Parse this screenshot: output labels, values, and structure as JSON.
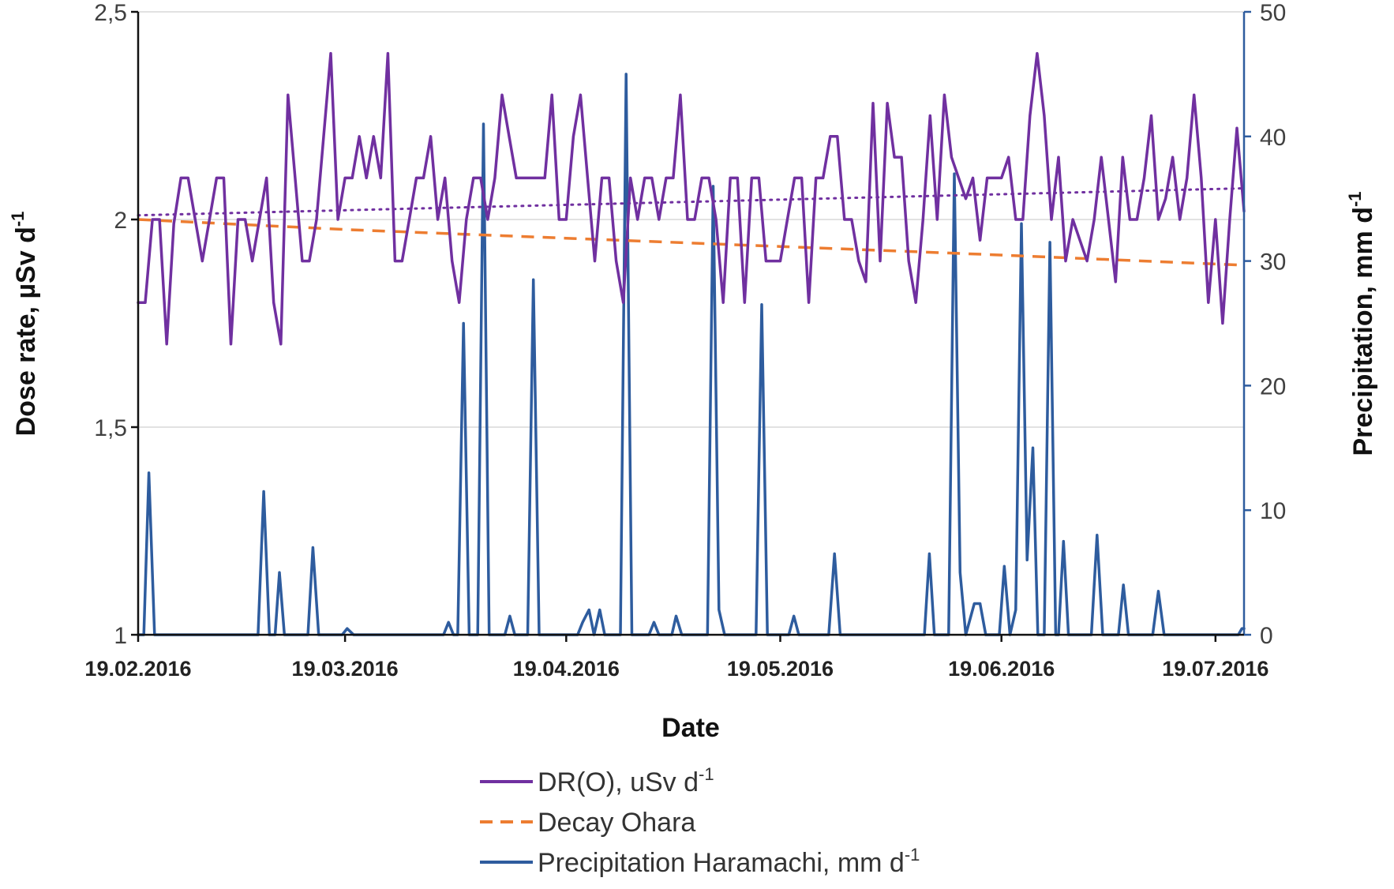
{
  "chart_data": {
    "type": "line",
    "title": "",
    "xlabel": "Date",
    "ylabel_left": "Dose rate, µSv d",
    "ylabel_left_sup": "-1",
    "ylabel_right": "Precipitation, mm d",
    "ylabel_right_sup": "-1",
    "ylim_left": [
      1,
      2.5
    ],
    "ylim_right": [
      0,
      50
    ],
    "left_ticks": [
      {
        "value": 1,
        "label": "1"
      },
      {
        "value": 1.5,
        "label": "1,5"
      },
      {
        "value": 2,
        "label": "2"
      },
      {
        "value": 2.5,
        "label": "2,5"
      }
    ],
    "right_ticks": [
      {
        "value": 0,
        "label": "0"
      },
      {
        "value": 10,
        "label": "10"
      },
      {
        "value": 20,
        "label": "20"
      },
      {
        "value": 30,
        "label": "30"
      },
      {
        "value": 40,
        "label": "40"
      },
      {
        "value": 50,
        "label": "50"
      }
    ],
    "x_range_days": [
      0,
      155
    ],
    "x_ticks": [
      {
        "day": 0,
        "label": "19.02.2016"
      },
      {
        "day": 29,
        "label": "19.03.2016"
      },
      {
        "day": 60,
        "label": "19.04.2016"
      },
      {
        "day": 90,
        "label": "19.05.2016"
      },
      {
        "day": 121,
        "label": "19.06.2016"
      },
      {
        "day": 151,
        "label": "19.07.2016"
      }
    ],
    "grid": "horizontal",
    "legend_position": "bottom",
    "series": [
      {
        "name": "DR(O), uSv d",
        "name_sup": "-1",
        "axis": "left",
        "color": "#7030a0",
        "style": "solid",
        "values": [
          [
            0,
            1.8
          ],
          [
            1,
            1.8
          ],
          [
            2,
            2.0
          ],
          [
            3,
            2.0
          ],
          [
            4,
            1.7
          ],
          [
            5,
            1.99
          ],
          [
            6,
            2.1
          ],
          [
            7,
            2.1
          ],
          [
            8,
            2.0
          ],
          [
            9,
            1.9
          ],
          [
            10,
            2.0
          ],
          [
            11,
            2.1
          ],
          [
            12,
            2.1
          ],
          [
            13,
            1.7
          ],
          [
            14,
            2.0
          ],
          [
            15,
            2.0
          ],
          [
            16,
            1.9
          ],
          [
            17,
            2.0
          ],
          [
            18,
            2.1
          ],
          [
            19,
            1.8
          ],
          [
            20,
            1.7
          ],
          [
            21,
            2.3
          ],
          [
            22,
            2.1
          ],
          [
            23,
            1.9
          ],
          [
            24,
            1.9
          ],
          [
            25,
            2.0
          ],
          [
            26,
            2.2
          ],
          [
            27,
            2.4
          ],
          [
            28,
            2.0
          ],
          [
            29,
            2.1
          ],
          [
            30,
            2.1
          ],
          [
            31,
            2.2
          ],
          [
            32,
            2.1
          ],
          [
            33,
            2.2
          ],
          [
            34,
            2.1
          ],
          [
            35,
            2.4
          ],
          [
            36,
            1.9
          ],
          [
            37,
            1.9
          ],
          [
            38,
            2.0
          ],
          [
            39,
            2.1
          ],
          [
            40,
            2.1
          ],
          [
            41,
            2.2
          ],
          [
            42,
            2.0
          ],
          [
            43,
            2.1
          ],
          [
            44,
            1.9
          ],
          [
            45,
            1.8
          ],
          [
            46,
            2.0
          ],
          [
            47,
            2.1
          ],
          [
            48,
            2.1
          ],
          [
            49,
            2.0
          ],
          [
            50,
            2.1
          ],
          [
            51,
            2.3
          ],
          [
            52,
            2.2
          ],
          [
            53,
            2.1
          ],
          [
            54,
            2.1
          ],
          [
            55,
            2.1
          ],
          [
            56,
            2.1
          ],
          [
            57,
            2.1
          ],
          [
            58,
            2.3
          ],
          [
            59,
            2.0
          ],
          [
            60,
            2.0
          ],
          [
            61,
            2.2
          ],
          [
            62,
            2.3
          ],
          [
            63,
            2.1
          ],
          [
            64,
            1.9
          ],
          [
            65,
            2.1
          ],
          [
            66,
            2.1
          ],
          [
            67,
            1.9
          ],
          [
            68,
            1.8
          ],
          [
            69,
            2.1
          ],
          [
            70,
            2.0
          ],
          [
            71,
            2.1
          ],
          [
            72,
            2.1
          ],
          [
            73,
            2.0
          ],
          [
            74,
            2.1
          ],
          [
            75,
            2.1
          ],
          [
            76,
            2.3
          ],
          [
            77,
            2.0
          ],
          [
            78,
            2.0
          ],
          [
            79,
            2.1
          ],
          [
            80,
            2.1
          ],
          [
            81,
            2.0
          ],
          [
            82,
            1.8
          ],
          [
            83,
            2.1
          ],
          [
            84,
            2.1
          ],
          [
            85,
            1.8
          ],
          [
            86,
            2.1
          ],
          [
            87,
            2.1
          ],
          [
            88,
            1.9
          ],
          [
            89,
            1.9
          ],
          [
            90,
            1.9
          ],
          [
            91,
            2.0
          ],
          [
            92,
            2.1
          ],
          [
            93,
            2.1
          ],
          [
            94,
            1.8
          ],
          [
            95,
            2.1
          ],
          [
            96,
            2.1
          ],
          [
            97,
            2.2
          ],
          [
            98,
            2.2
          ],
          [
            99,
            2.0
          ],
          [
            100,
            2.0
          ],
          [
            101,
            1.9
          ],
          [
            102,
            1.85
          ],
          [
            103,
            2.28
          ],
          [
            104,
            1.9
          ],
          [
            105,
            2.28
          ],
          [
            106,
            2.15
          ],
          [
            107,
            2.15
          ],
          [
            108,
            1.9
          ],
          [
            109,
            1.8
          ],
          [
            110,
            2.0
          ],
          [
            111,
            2.25
          ],
          [
            112,
            2.0
          ],
          [
            113,
            2.3
          ],
          [
            114,
            2.15
          ],
          [
            115,
            2.1
          ],
          [
            116,
            2.05
          ],
          [
            117,
            2.1
          ],
          [
            118,
            1.95
          ],
          [
            119,
            2.1
          ],
          [
            120,
            2.1
          ],
          [
            121,
            2.1
          ],
          [
            122,
            2.15
          ],
          [
            123,
            2.0
          ],
          [
            124,
            2.0
          ],
          [
            125,
            2.25
          ],
          [
            126,
            2.4
          ],
          [
            127,
            2.25
          ],
          [
            128,
            2.0
          ],
          [
            129,
            2.15
          ],
          [
            130,
            1.9
          ],
          [
            131,
            2.0
          ],
          [
            132,
            1.95
          ],
          [
            133,
            1.9
          ],
          [
            134,
            2.0
          ],
          [
            135,
            2.15
          ],
          [
            136,
            2.0
          ],
          [
            137,
            1.85
          ],
          [
            138,
            2.15
          ],
          [
            139,
            2.0
          ],
          [
            140,
            2.0
          ],
          [
            141,
            2.1
          ],
          [
            142,
            2.25
          ],
          [
            143,
            2.0
          ],
          [
            144,
            2.05
          ],
          [
            145,
            2.15
          ],
          [
            146,
            2.0
          ],
          [
            147,
            2.1
          ],
          [
            148,
            2.3
          ],
          [
            149,
            2.1
          ],
          [
            150,
            1.8
          ],
          [
            151,
            2.0
          ],
          [
            152,
            1.75
          ],
          [
            153,
            2.0
          ],
          [
            154,
            2.22
          ],
          [
            155,
            2.02
          ]
        ]
      },
      {
        "name": "DR(O) trend",
        "axis": "left",
        "color": "#7030a0",
        "style": "dotted",
        "legend": false,
        "values": [
          [
            0,
            2.01
          ],
          [
            155,
            2.075
          ]
        ]
      },
      {
        "name": "Decay Ohara",
        "axis": "left",
        "color": "#ed7d31",
        "style": "dashed",
        "values": [
          [
            0,
            2.0
          ],
          [
            30,
            1.975
          ],
          [
            60,
            1.955
          ],
          [
            90,
            1.935
          ],
          [
            120,
            1.915
          ],
          [
            155,
            1.89
          ]
        ]
      },
      {
        "name": "Precipitation Haramachi, mm d",
        "name_sup": "-1",
        "axis": "right",
        "color": "#2e5c9e",
        "style": "solid",
        "values": [
          [
            0,
            0
          ],
          [
            0.8,
            0
          ],
          [
            1.5,
            13
          ],
          [
            2.3,
            0
          ],
          [
            4,
            0
          ],
          [
            16.8,
            0
          ],
          [
            17.6,
            11.5
          ],
          [
            18.4,
            0
          ],
          [
            19.2,
            0
          ],
          [
            19.8,
            5
          ],
          [
            20.5,
            0
          ],
          [
            23.8,
            0
          ],
          [
            24.5,
            7
          ],
          [
            25.3,
            0
          ],
          [
            28.6,
            0
          ],
          [
            29.3,
            0.5
          ],
          [
            30.2,
            0
          ],
          [
            42.8,
            0
          ],
          [
            43.5,
            1
          ],
          [
            44.2,
            0
          ],
          [
            44.8,
            0
          ],
          [
            45.6,
            25
          ],
          [
            46.4,
            0
          ],
          [
            47.6,
            0
          ],
          [
            48.4,
            41
          ],
          [
            49.2,
            0
          ],
          [
            51.4,
            0
          ],
          [
            52.1,
            1.5
          ],
          [
            52.8,
            0
          ],
          [
            54.6,
            0
          ],
          [
            55.4,
            28.5
          ],
          [
            56.2,
            0
          ],
          [
            61.6,
            0
          ],
          [
            62.3,
            1
          ],
          [
            63.2,
            2
          ],
          [
            63.9,
            0
          ],
          [
            64.7,
            2
          ],
          [
            65.4,
            0
          ],
          [
            67.6,
            0
          ],
          [
            68.4,
            45
          ],
          [
            69.2,
            0
          ],
          [
            71.6,
            0
          ],
          [
            72.3,
            1
          ],
          [
            73,
            0
          ],
          [
            74.8,
            0
          ],
          [
            75.4,
            1.5
          ],
          [
            76.2,
            0
          ],
          [
            79.8,
            0
          ],
          [
            80.6,
            36
          ],
          [
            81.4,
            2
          ],
          [
            82.2,
            0
          ],
          [
            86.6,
            0
          ],
          [
            87.4,
            26.5
          ],
          [
            88.2,
            0
          ],
          [
            91.2,
            0
          ],
          [
            91.9,
            1.5
          ],
          [
            92.6,
            0
          ],
          [
            96.8,
            0
          ],
          [
            97.6,
            6.5
          ],
          [
            98.4,
            0
          ],
          [
            110.2,
            0
          ],
          [
            110.9,
            6.5
          ],
          [
            111.6,
            0
          ],
          [
            113.6,
            0
          ],
          [
            114.4,
            37
          ],
          [
            115.2,
            5
          ],
          [
            116,
            0
          ],
          [
            117.2,
            2.5
          ],
          [
            118,
            2.5
          ],
          [
            118.8,
            0
          ],
          [
            120.7,
            0
          ],
          [
            121.4,
            5.5
          ],
          [
            122.2,
            0
          ],
          [
            123,
            2
          ],
          [
            123.8,
            33
          ],
          [
            124.6,
            6
          ],
          [
            125.4,
            15
          ],
          [
            126.1,
            0
          ],
          [
            127,
            0
          ],
          [
            127.8,
            31.5
          ],
          [
            128.6,
            0
          ],
          [
            129,
            0
          ],
          [
            129.7,
            7.5
          ],
          [
            130.4,
            0
          ],
          [
            133.6,
            0
          ],
          [
            134.4,
            8
          ],
          [
            135.2,
            0
          ],
          [
            137.4,
            0
          ],
          [
            138.1,
            4
          ],
          [
            138.8,
            0
          ],
          [
            142.2,
            0
          ],
          [
            143,
            3.5
          ],
          [
            143.8,
            0
          ],
          [
            154.2,
            0
          ],
          [
            154.7,
            0.5
          ],
          [
            155,
            0.5
          ]
        ]
      }
    ],
    "legend": [
      {
        "label": "DR(O), uSv d",
        "sup": "-1",
        "color": "#7030a0",
        "style": "solid"
      },
      {
        "label": "Decay Ohara",
        "sup": "",
        "color": "#ed7d31",
        "style": "dashed"
      },
      {
        "label": "Precipitation Haramachi, mm d",
        "sup": "-1",
        "color": "#2e5c9e",
        "style": "solid"
      }
    ]
  },
  "colors": {
    "left_axis": "#111111",
    "right_axis": "#2e5c9e",
    "grid": "#d9d9d9"
  }
}
